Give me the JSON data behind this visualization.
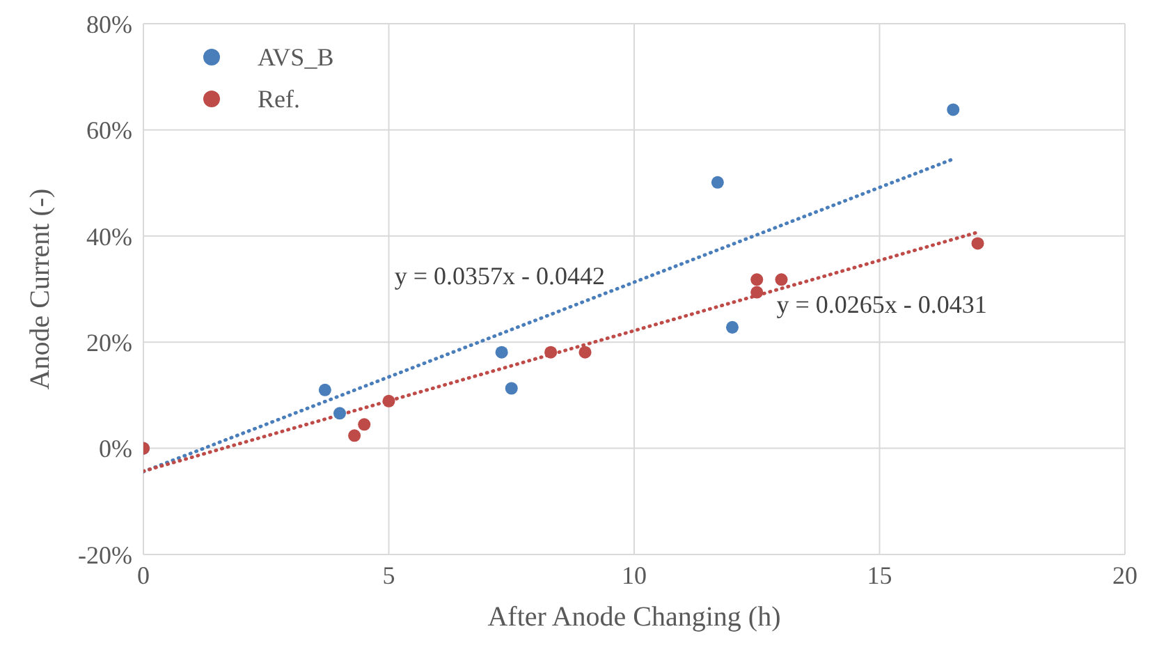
{
  "chart_data": {
    "type": "scatter",
    "xlabel": "After Anode Changing  (h)",
    "ylabel": "Anode Current (-)",
    "xlim": [
      0,
      20
    ],
    "xticks": [
      0,
      5,
      10,
      15,
      20
    ],
    "ylim": [
      -20,
      80
    ],
    "yticks": [
      {
        "value": -20,
        "label": "-20%"
      },
      {
        "value": 0,
        "label": "0%"
      },
      {
        "value": 20,
        "label": "20%"
      },
      {
        "value": 40,
        "label": "40%"
      },
      {
        "value": 60,
        "label": "60%"
      },
      {
        "value": 80,
        "label": "80%"
      }
    ],
    "grid": true,
    "legend": "top left",
    "marker": "circle",
    "series": [
      {
        "name": "AVS_B",
        "color": "#4a7ebb",
        "x": [
          0,
          3.7,
          4.0,
          7.3,
          7.5,
          11.7,
          12.0,
          16.5
        ],
        "values": [
          0,
          11,
          6.6,
          18.1,
          11.3,
          50.1,
          22.8,
          63.8
        ]
      },
      {
        "name": "Ref.",
        "color": "#be4b48",
        "x": [
          0,
          4.3,
          4.5,
          5.0,
          8.3,
          9.0,
          12.5,
          12.5,
          13.0,
          17.0
        ],
        "values": [
          0,
          2.4,
          4.5,
          8.9,
          18.1,
          18.1,
          31.8,
          29.4,
          31.8,
          38.6
        ]
      },
      {
        "type": "line",
        "color": "#4a7ebb",
        "line_style": "dotted",
        "marker": "none",
        "x": [
          0,
          16.5
        ],
        "values": [
          -4.4,
          54.5
        ]
      },
      {
        "type": "line",
        "color": "#be4b48",
        "line_style": "dotted",
        "marker": "none",
        "x": [
          0,
          17
        ],
        "values": [
          -4.3,
          40.7
        ]
      }
    ],
    "annotations": [
      "y = 0.0357x - 0.0442",
      "y = 0.0265x - 0.0431"
    ]
  }
}
